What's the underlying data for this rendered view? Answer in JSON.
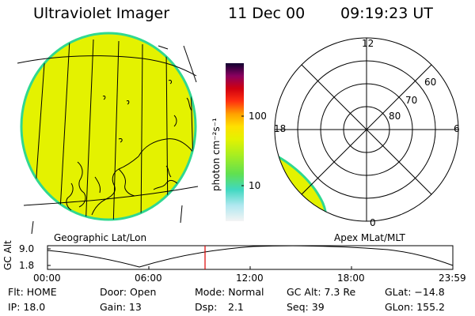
{
  "header": {
    "title": "Ultraviolet Imager",
    "date": "11 Dec 00",
    "time": "09:19:23 UT"
  },
  "colorbar": {
    "unit_label": "photon cm⁻²s⁻¹",
    "ticks": [
      "100",
      "10"
    ]
  },
  "map_labels": {
    "geographic": "Geographic Lat/Lon",
    "apex": "Apex MLat/MLT"
  },
  "polar_plot": {
    "mlt_labels": {
      "top": "12",
      "left": "18",
      "right": "6",
      "bottom": "0"
    },
    "mlat_rings": [
      "60",
      "70",
      "80"
    ]
  },
  "altitude_plot": {
    "ylabel": "GC Alt",
    "y_ticks": [
      "9.0",
      "1.8"
    ],
    "x_ticks": [
      "00:00",
      "06:00",
      "12:00",
      "18:00",
      "23:59"
    ],
    "current_time": "09:19"
  },
  "status": {
    "flt": "Flt: HOME",
    "ip": "IP: 18.0",
    "door": "Door: Open",
    "gain": "Gain: 13",
    "mode": "Mode: Normal",
    "dsp_label": "Dsp:",
    "dsp_value": "2.1",
    "gc_alt": "GC Alt: 7.3 Re",
    "seq": "Seq: 39",
    "glat": "GLat: −14.8",
    "glon": "GLon: 155.2"
  },
  "colors": {
    "image_fill": "#e4f200",
    "image_edge": "#30d890",
    "time_marker": "#dd0000"
  }
}
